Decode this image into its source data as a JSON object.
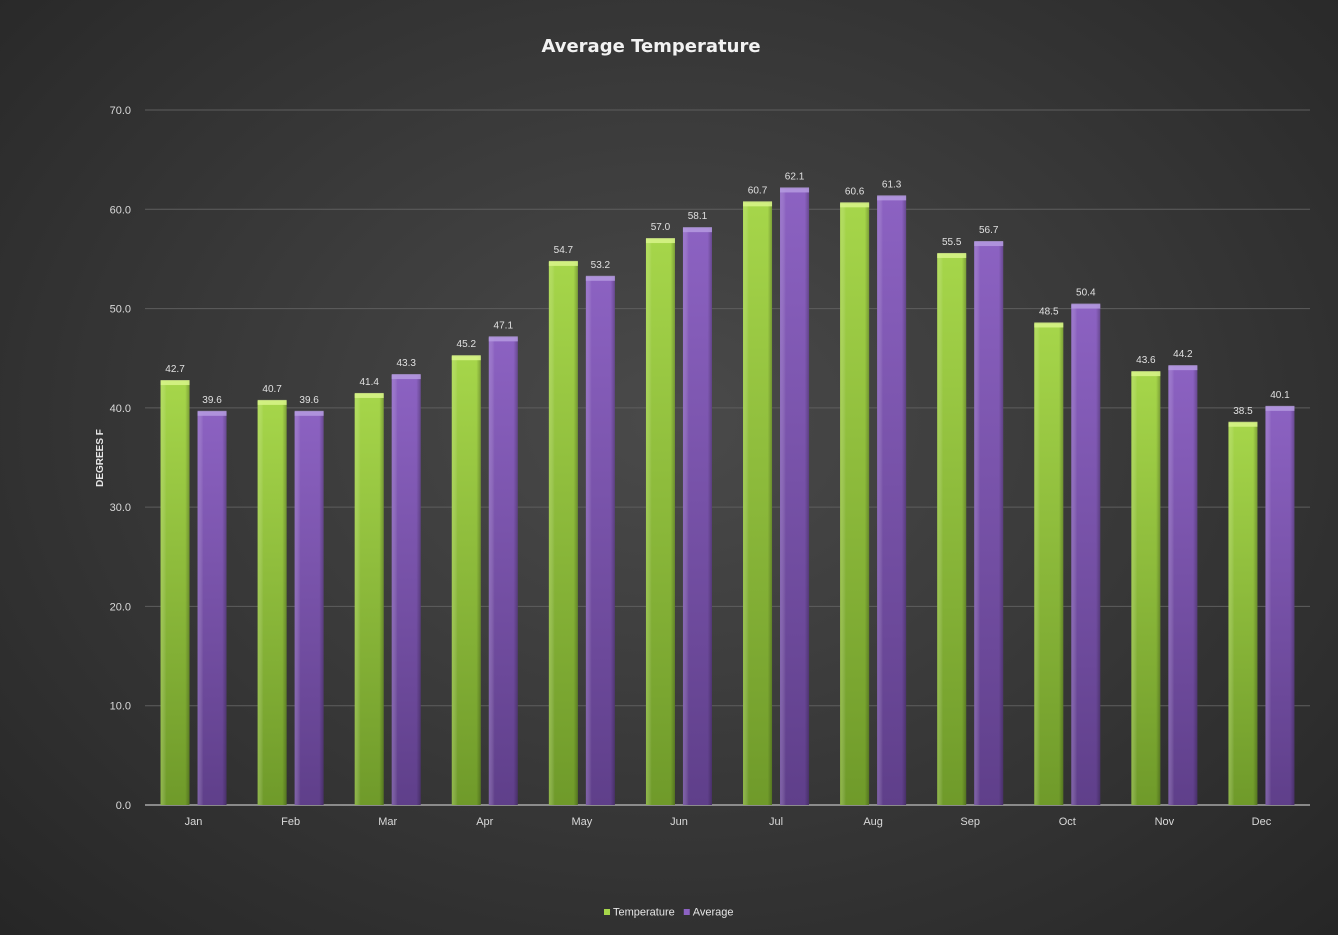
{
  "chart_data": {
    "type": "bar",
    "title": "Average Temperature",
    "xlabel": "",
    "ylabel": "DEGREES F",
    "ylim": [
      0,
      70
    ],
    "ytick_step": 10,
    "ytick_labels": [
      "0.0",
      "10.0",
      "20.0",
      "30.0",
      "40.0",
      "50.0",
      "60.0",
      "70.0"
    ],
    "categories": [
      "Jan",
      "Feb",
      "Mar",
      "Apr",
      "May",
      "Jun",
      "Jul",
      "Aug",
      "Sep",
      "Oct",
      "Nov",
      "Dec"
    ],
    "series": [
      {
        "name": "Temperature",
        "color": "#8fc23a",
        "values": [
          42.7,
          40.7,
          41.4,
          45.2,
          54.7,
          57.0,
          60.7,
          60.6,
          55.5,
          48.5,
          43.6,
          38.5
        ],
        "labels": [
          "42.7",
          "40.7",
          "41.4",
          "45.2",
          "54.7",
          "57.0",
          "60.7",
          "60.6",
          "55.5",
          "48.5",
          "43.6",
          "38.5"
        ]
      },
      {
        "name": "Average",
        "color": "#7a52a8",
        "values": [
          39.6,
          39.6,
          43.3,
          47.1,
          53.2,
          58.1,
          62.1,
          61.3,
          56.7,
          50.4,
          44.2,
          40.1
        ],
        "labels": [
          "39.6",
          "39.6",
          "43.3",
          "47.1",
          "53.2",
          "58.1",
          "62.1",
          "61.3",
          "56.7",
          "50.4",
          "44.2",
          "40.1"
        ]
      }
    ],
    "grid": true,
    "data_labels": true,
    "legend_position": "bottom"
  }
}
